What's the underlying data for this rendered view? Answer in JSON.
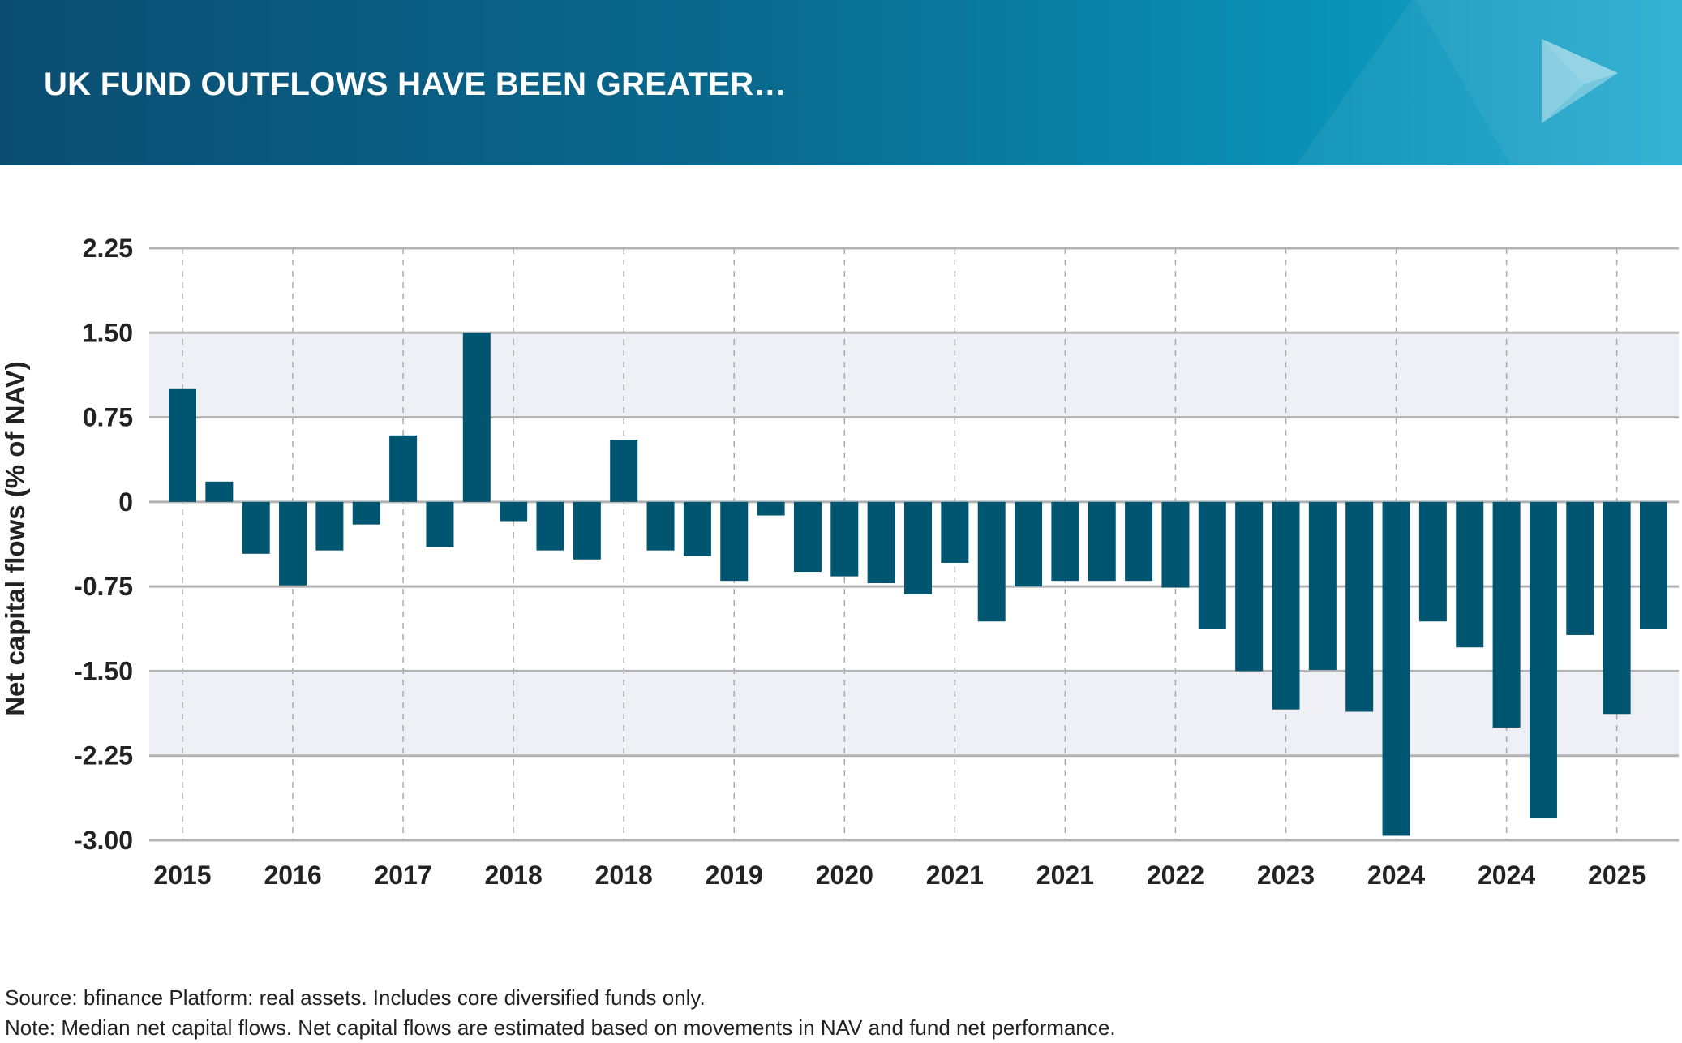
{
  "header": {
    "title": "UK FUND OUTFLOWS HAVE BEEN GREATER…",
    "logo_icon": "play-triangle-logo-icon"
  },
  "footer": {
    "source": "Source: bfinance Platform: real assets. Includes core diversified funds only.",
    "note": "Note: Median net capital flows. Net capital flows are estimated based on movements in NAV and fund net performance."
  },
  "colors": {
    "bar": "#005670",
    "band": "#eef0f5",
    "gridline": "#b3b3b3",
    "header_gradient": [
      "#0b4d72",
      "#1fa9cf"
    ]
  },
  "chart_data": {
    "type": "bar",
    "title": "",
    "xlabel": "",
    "ylabel": "Net capital flows (% of NAV)",
    "ylim": [
      -3.0,
      2.25
    ],
    "yticks": [
      2.25,
      1.5,
      0.75,
      0,
      -0.75,
      -1.5,
      -2.25,
      -3.0
    ],
    "ytick_labels": [
      "2.25",
      "1.50",
      "0.75",
      "0",
      "-0.75",
      "-1.50",
      "-2.25",
      "-3.00"
    ],
    "xtick_labels": [
      "2015",
      "2016",
      "2017",
      "2018",
      "2018",
      "2019",
      "2020",
      "2021",
      "2021",
      "2022",
      "2023",
      "2024",
      "2024",
      "2025"
    ],
    "xtick_every_n_bars": 3,
    "values": [
      1.0,
      0.18,
      -0.46,
      -0.74,
      -0.43,
      -0.2,
      0.59,
      -0.4,
      1.5,
      -0.17,
      -0.43,
      -0.51,
      0.55,
      -0.43,
      -0.48,
      -0.7,
      -0.12,
      -0.62,
      -0.66,
      -0.72,
      -0.82,
      -0.54,
      -1.06,
      -0.75,
      -0.7,
      -0.7,
      -0.7,
      -0.76,
      -1.13,
      -1.5,
      -1.84,
      -1.49,
      -1.86,
      -2.96,
      -1.06,
      -1.29,
      -2.0,
      -2.8,
      -1.18,
      -1.88,
      -1.13
    ],
    "shaded_bands": [
      [
        0.75,
        1.5
      ],
      [
        -2.25,
        -1.5
      ]
    ],
    "grid": true
  }
}
